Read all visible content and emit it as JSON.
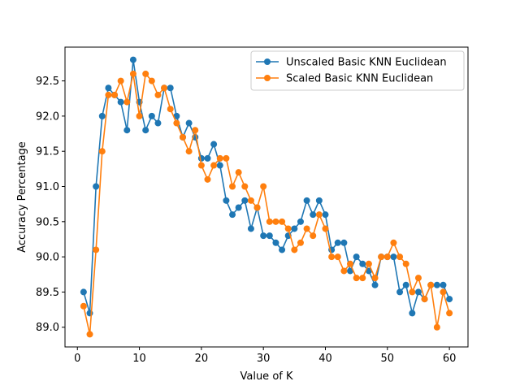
{
  "chart_data": {
    "type": "line",
    "title": "",
    "xlabel": "Value of K",
    "ylabel": "Accuracy Percentage",
    "xlim": [
      -2.0,
      63.0
    ],
    "ylim": [
      88.72,
      92.98
    ],
    "x_ticks": [
      0,
      10,
      20,
      30,
      40,
      50,
      60
    ],
    "x_tick_labels": [
      "0",
      "10",
      "20",
      "30",
      "40",
      "50",
      "60"
    ],
    "y_ticks": [
      89.0,
      89.5,
      90.0,
      90.5,
      91.0,
      91.5,
      92.0,
      92.5
    ],
    "y_tick_labels": [
      "89.0",
      "89.5",
      "90.0",
      "90.5",
      "91.0",
      "91.5",
      "92.0",
      "92.5"
    ],
    "grid": false,
    "legend_position": "top-right",
    "x": [
      1,
      2,
      3,
      4,
      5,
      6,
      7,
      8,
      9,
      10,
      11,
      12,
      13,
      14,
      15,
      16,
      17,
      18,
      19,
      20,
      21,
      22,
      23,
      24,
      25,
      26,
      27,
      28,
      29,
      30,
      31,
      32,
      33,
      34,
      35,
      36,
      37,
      38,
      39,
      40,
      41,
      42,
      43,
      44,
      45,
      46,
      47,
      48,
      49,
      50,
      51,
      52,
      53,
      54,
      55,
      56,
      57,
      58,
      59,
      60
    ],
    "series": [
      {
        "name": "Unscaled Basic KNN Euclidean",
        "color": "#1f77b4",
        "marker": "circle",
        "values": [
          89.5,
          89.2,
          91.0,
          92.0,
          92.4,
          92.3,
          92.2,
          91.8,
          92.8,
          92.2,
          91.8,
          92.0,
          91.9,
          92.4,
          92.4,
          92.0,
          91.7,
          91.9,
          91.7,
          91.4,
          91.4,
          91.6,
          91.3,
          90.8,
          90.6,
          90.7,
          90.8,
          90.4,
          90.7,
          90.3,
          90.3,
          90.2,
          90.1,
          90.3,
          90.4,
          90.5,
          90.8,
          90.6,
          90.8,
          90.6,
          90.1,
          90.2,
          90.2,
          89.8,
          90.0,
          89.9,
          89.8,
          89.6,
          90.0,
          90.0,
          90.0,
          89.5,
          89.6,
          89.2,
          89.5,
          89.4,
          89.6,
          89.6,
          89.6,
          89.4
        ]
      },
      {
        "name": "Scaled Basic KNN Euclidean",
        "color": "#ff7f0e",
        "marker": "circle",
        "values": [
          89.3,
          88.9,
          90.1,
          91.5,
          92.3,
          92.3,
          92.5,
          92.2,
          92.6,
          92.0,
          92.6,
          92.5,
          92.3,
          92.4,
          92.1,
          91.9,
          91.7,
          91.5,
          91.8,
          91.3,
          91.1,
          91.3,
          91.4,
          91.4,
          91.0,
          91.2,
          91.0,
          90.8,
          90.7,
          91.0,
          90.5,
          90.5,
          90.5,
          90.4,
          90.1,
          90.2,
          90.4,
          90.3,
          90.6,
          90.4,
          90.0,
          90.0,
          89.8,
          89.9,
          89.7,
          89.7,
          89.9,
          89.7,
          90.0,
          90.0,
          90.2,
          90.0,
          89.9,
          89.5,
          89.7,
          89.4,
          89.6,
          89.0,
          89.5,
          89.2
        ]
      }
    ]
  }
}
